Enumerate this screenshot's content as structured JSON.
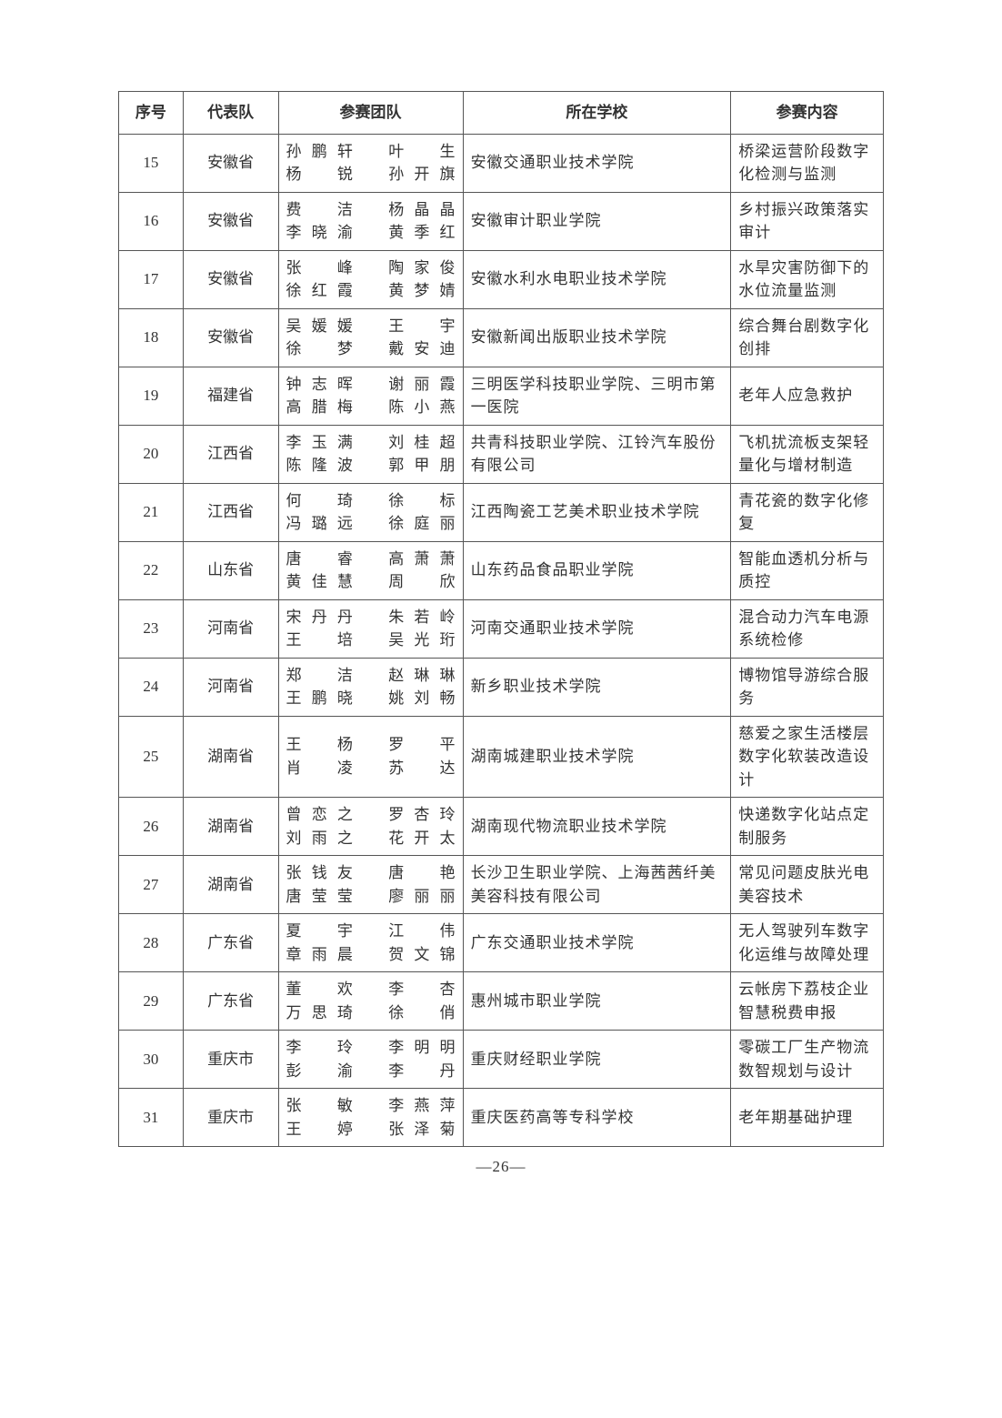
{
  "headers": {
    "seq": "序号",
    "province": "代表队",
    "team": "参赛团队",
    "school": "所在学校",
    "content": "参赛内容"
  },
  "rows": [
    {
      "seq": "15",
      "province": "安徽省",
      "team": "孙鹏轩　叶　生\n杨　锐　孙开旗",
      "school": "安徽交通职业技术学院",
      "content": "桥梁运营阶段数字化检测与监测"
    },
    {
      "seq": "16",
      "province": "安徽省",
      "team": "费　洁　杨晶晶\n李晓渝　黄季红",
      "school": "安徽审计职业学院",
      "content": "乡村振兴政策落实审计"
    },
    {
      "seq": "17",
      "province": "安徽省",
      "team": "张　峰　陶家俊\n徐红霞　黄梦婧",
      "school": "安徽水利水电职业技术学院",
      "content": "水旱灾害防御下的水位流量监测"
    },
    {
      "seq": "18",
      "province": "安徽省",
      "team": "吴媛媛　王　宇\n徐　梦　戴安迪",
      "school": "安徽新闻出版职业技术学院",
      "content": "综合舞台剧数字化创排"
    },
    {
      "seq": "19",
      "province": "福建省",
      "team": "钟志晖　谢丽霞\n高腊梅　陈小燕",
      "school": "三明医学科技职业学院、三明市第一医院",
      "content": "老年人应急救护"
    },
    {
      "seq": "20",
      "province": "江西省",
      "team": "李玉满　刘桂超\n陈隆波　郭甲朋",
      "school": "共青科技职业学院、江铃汽车股份有限公司",
      "content": "飞机扰流板支架轻量化与增材制造"
    },
    {
      "seq": "21",
      "province": "江西省",
      "team": "何　琦　徐　标\n冯璐远　徐庭丽",
      "school": "江西陶瓷工艺美术职业技术学院",
      "content": "青花瓷的数字化修复"
    },
    {
      "seq": "22",
      "province": "山东省",
      "team": "唐　睿　高萧萧\n黄佳慧　周　欣",
      "school": "山东药品食品职业学院",
      "content": "智能血透机分析与质控"
    },
    {
      "seq": "23",
      "province": "河南省",
      "team": "宋丹丹　朱若岭\n王　培　吴光珩",
      "school": "河南交通职业技术学院",
      "content": "混合动力汽车电源系统检修"
    },
    {
      "seq": "24",
      "province": "河南省",
      "team": "郑　洁　赵琳琳\n王鹏晓　姚刘畅",
      "school": "新乡职业技术学院",
      "content": "博物馆导游综合服务"
    },
    {
      "seq": "25",
      "province": "湖南省",
      "team": "王　杨　罗　平\n肖　凌　苏　达",
      "school": "湖南城建职业技术学院",
      "content": "慈爱之家生活楼层数字化软装改造设计"
    },
    {
      "seq": "26",
      "province": "湖南省",
      "team": "曾恋之　罗杏玲\n刘雨之　花开太",
      "school": "湖南现代物流职业技术学院",
      "content": "快递数字化站点定制服务"
    },
    {
      "seq": "27",
      "province": "湖南省",
      "team": "张钱友　唐　艳\n唐莹莹　廖丽丽",
      "school": "长沙卫生职业学院、上海茜茜纤美美容科技有限公司",
      "content": "常见问题皮肤光电美容技术"
    },
    {
      "seq": "28",
      "province": "广东省",
      "team": "夏　宇　江　伟\n章雨晨　贺文锦",
      "school": "广东交通职业技术学院",
      "content": "无人驾驶列车数字化运维与故障处理"
    },
    {
      "seq": "29",
      "province": "广东省",
      "team": "董　欢　李　杏\n万思琦　徐　俏",
      "school": "惠州城市职业学院",
      "content": "云帐房下荔枝企业智慧税费申报"
    },
    {
      "seq": "30",
      "province": "重庆市",
      "team": "李　玲　李明明\n彭　渝　李　丹",
      "school": "重庆财经职业学院",
      "content": "零碳工厂生产物流数智规划与设计"
    },
    {
      "seq": "31",
      "province": "重庆市",
      "team": "张　敏　李燕萍\n王　婷　张泽菊",
      "school": "重庆医药高等专科学校",
      "content": "老年期基础护理"
    }
  ],
  "pageNumber": "—26—"
}
